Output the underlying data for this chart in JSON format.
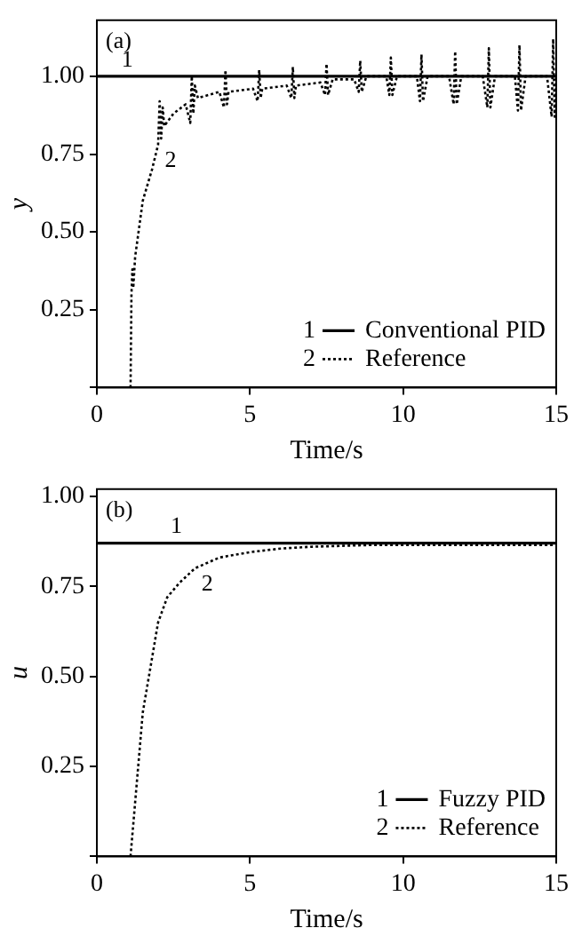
{
  "chart_data": [
    {
      "type": "line",
      "xlabel": "Time/s",
      "ylabel": "y",
      "xlim": [
        0,
        15
      ],
      "xticks": [
        0,
        5,
        10,
        15
      ],
      "ylim": [
        0,
        1.18
      ],
      "yticks": [
        {
          "value": 0,
          "label": null
        },
        {
          "value": 0.25,
          "label": "0.25"
        },
        {
          "value": 0.5,
          "label": "0.50"
        },
        {
          "value": 0.75,
          "label": "0.75"
        },
        {
          "value": 1,
          "label": "1.00"
        }
      ],
      "grid": false,
      "legend": "bottom right",
      "marker": "none",
      "annotations": [
        "(a)",
        {
          "text": "1",
          "x": 1.4,
          "y": 1
        },
        {
          "text": "2",
          "x": 2.0,
          "y": 0.78
        }
      ],
      "series": [
        {
          "name": "Conventional PID",
          "color": "#000000",
          "line_style": "solid",
          "x": [
            0,
            15
          ],
          "values": [
            1,
            1
          ]
        },
        {
          "name": "Reference",
          "color": "#000000",
          "line_style": "dotted",
          "x": [
            1.1,
            1.13,
            1.16,
            1.19,
            1.25,
            1.5,
            1.8,
            2.0,
            2.05,
            2.1,
            2.15,
            2.2,
            2.5,
            2.9,
            3.05,
            3.1,
            3.15,
            3.2,
            3.3,
            4.0,
            4.15,
            4.2,
            4.25,
            4.3,
            5.1,
            5.25,
            5.3,
            5.35,
            5.4,
            6.2,
            6.35,
            6.4,
            6.45,
            6.5,
            7.3,
            7.45,
            7.5,
            7.55,
            7.7,
            8.4,
            8.55,
            8.6,
            8.65,
            8.8,
            9.45,
            9.55,
            9.6,
            9.65,
            9.8,
            10.45,
            10.55,
            10.6,
            10.65,
            10.8,
            11.5,
            11.65,
            11.7,
            11.75,
            11.9,
            12.6,
            12.75,
            12.8,
            12.85,
            13.0,
            13.65,
            13.75,
            13.8,
            13.85,
            14.0,
            14.7,
            14.85,
            14.9,
            14.95,
            15
          ],
          "values": [
            0,
            0.3,
            0.38,
            0.32,
            0.42,
            0.6,
            0.7,
            0.78,
            0.92,
            0.8,
            0.9,
            0.84,
            0.88,
            0.91,
            0.85,
            1.0,
            0.88,
            0.97,
            0.93,
            0.95,
            0.9,
            1.02,
            0.91,
            0.95,
            0.96,
            0.92,
            1.02,
            0.93,
            0.96,
            0.97,
            0.93,
            1.03,
            0.93,
            0.97,
            0.98,
            0.94,
            1.04,
            0.94,
            0.99,
            0.99,
            0.95,
            1.05,
            0.95,
            1.0,
            1.0,
            0.94,
            1.06,
            0.94,
            1.0,
            1.0,
            0.92,
            1.07,
            0.92,
            1.0,
            1.0,
            0.91,
            1.08,
            0.91,
            1.0,
            1.0,
            0.9,
            1.09,
            0.9,
            1.0,
            1.0,
            0.89,
            1.1,
            0.89,
            1.0,
            1.0,
            0.87,
            1.12,
            0.87,
            1.0
          ]
        }
      ]
    },
    {
      "type": "line",
      "xlabel": "Time/s",
      "ylabel": "u",
      "xlim": [
        0,
        15
      ],
      "xticks": [
        0,
        5,
        10,
        15
      ],
      "ylim": [
        0,
        1.02
      ],
      "yticks": [
        {
          "value": 0,
          "label": null
        },
        {
          "value": 0.25,
          "label": "0.25"
        },
        {
          "value": 0.5,
          "label": "0.50"
        },
        {
          "value": 0.75,
          "label": "0.75"
        },
        {
          "value": 1,
          "label": "1.00"
        }
      ],
      "grid": false,
      "legend": "bottom right",
      "marker": "none",
      "annotations": [
        "(b)",
        {
          "text": "1",
          "x": 3.0,
          "y": 0.87
        },
        {
          "text": "2",
          "x": 3.2,
          "y": 0.8
        }
      ],
      "series": [
        {
          "name": "Fuzzy PID",
          "color": "#000000",
          "line_style": "solid",
          "x": [
            0,
            15
          ],
          "values": [
            0.87,
            0.87
          ]
        },
        {
          "name": "Reference",
          "color": "#000000",
          "line_style": "dotted",
          "x": [
            1.1,
            1.3,
            1.5,
            1.7,
            2.0,
            2.3,
            2.7,
            3.2,
            4.0,
            5.0,
            6.0,
            7.0,
            9.0,
            15
          ],
          "values": [
            0,
            0.2,
            0.4,
            0.5,
            0.65,
            0.72,
            0.76,
            0.8,
            0.83,
            0.845,
            0.855,
            0.86,
            0.865,
            0.865
          ]
        }
      ]
    }
  ]
}
